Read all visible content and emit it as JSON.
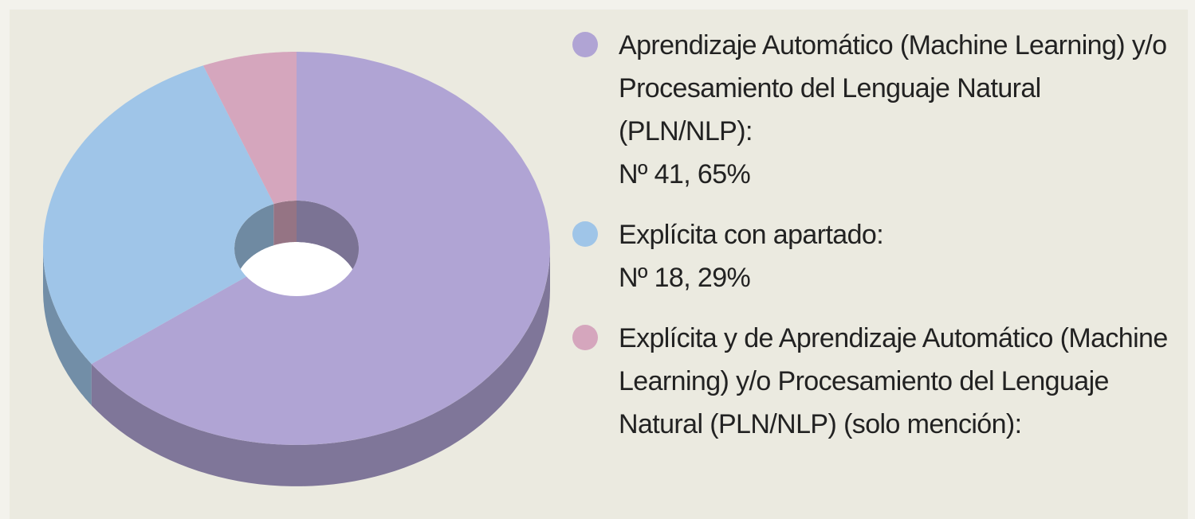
{
  "chart_data": {
    "type": "donut3d",
    "categories": [
      "Aprendizaje Automático (Machine Learning) y/o Procesamiento del Lenguaje Natural (PLN/NLP):",
      "Explícita con apartado:",
      "Explícita y de Aprendizaje Automático (Machine Learning) y/o Procesamiento del Lenguaje Natural (PLN/NLP) (solo mención):"
    ],
    "values": [
      65,
      29,
      6
    ],
    "value_labels": [
      "Nº 41, 65%",
      "Nº 18, 29%",
      null
    ],
    "colors": [
      "#b0a4d4",
      "#9fc5e8",
      "#d5a6bd"
    ]
  }
}
